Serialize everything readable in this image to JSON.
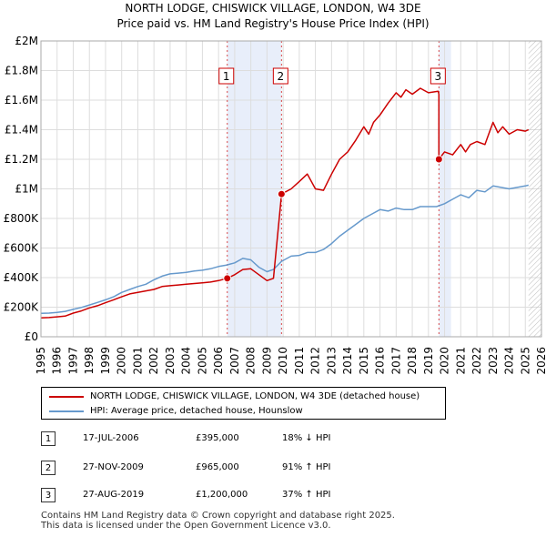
{
  "title_line1": "NORTH LODGE, CHISWICK VILLAGE, LONDON, W4 3DE",
  "title_line2": "Price paid vs. HM Land Registry's House Price Index (HPI)",
  "colors": {
    "property": "#cc0000",
    "hpi": "#6699cc",
    "shade": "#e8eefa",
    "grid": "#dddddd",
    "marker": "#cc0000"
  },
  "chart_data": {
    "type": "line",
    "title": "NORTH LODGE, CHISWICK VILLAGE, LONDON, W4 3DE — Price paid vs. HM Land Registry's House Price Index (HPI)",
    "xlabel": "",
    "ylabel": "",
    "xlim": [
      1995,
      2026
    ],
    "ylim": [
      0,
      2000000
    ],
    "x_ticks": [
      "1995",
      "1996",
      "1997",
      "1998",
      "1999",
      "2000",
      "2001",
      "2002",
      "2003",
      "2004",
      "2005",
      "2006",
      "2007",
      "2008",
      "2009",
      "2010",
      "2011",
      "2012",
      "2013",
      "2014",
      "2015",
      "2016",
      "2017",
      "2018",
      "2019",
      "2020",
      "2021",
      "2022",
      "2023",
      "2024",
      "2025",
      "2026"
    ],
    "y_ticks": [
      {
        "value": 0,
        "label": "£0"
      },
      {
        "value": 200000,
        "label": "£200K"
      },
      {
        "value": 400000,
        "label": "£400K"
      },
      {
        "value": 600000,
        "label": "£600K"
      },
      {
        "value": 800000,
        "label": "£800K"
      },
      {
        "value": 1000000,
        "label": "£1M"
      },
      {
        "value": 1200000,
        "label": "£1.2M"
      },
      {
        "value": 1400000,
        "label": "£1.4M"
      },
      {
        "value": 1600000,
        "label": "£1.6M"
      },
      {
        "value": 1800000,
        "label": "£1.8M"
      },
      {
        "value": 2000000,
        "label": "£2M"
      }
    ],
    "grid": true,
    "shaded_ranges": [
      [
        2006.54,
        2009.9
      ],
      [
        2019.65,
        2020.4
      ]
    ],
    "hatched_after": 2025.2,
    "series": [
      {
        "name": "NORTH LODGE, CHISWICK VILLAGE, LONDON, W4 3DE (detached house)",
        "color": "#cc0000",
        "x": [
          1995.0,
          1995.5,
          1996.0,
          1996.5,
          1997.0,
          1997.5,
          1998.0,
          1998.5,
          1999.0,
          1999.5,
          2000.0,
          2000.5,
          2001.0,
          2001.5,
          2002.0,
          2002.5,
          2003.0,
          2003.5,
          2004.0,
          2004.5,
          2005.0,
          2005.5,
          2006.0,
          2006.54,
          2006.54,
          2007.0,
          2007.5,
          2008.0,
          2008.5,
          2009.0,
          2009.4,
          2009.9,
          2009.9,
          2010.5,
          2011.0,
          2011.5,
          2012.0,
          2012.5,
          2013.0,
          2013.5,
          2014.0,
          2014.5,
          2015.0,
          2015.3,
          2015.6,
          2016.0,
          2016.5,
          2017.0,
          2017.3,
          2017.6,
          2018.0,
          2018.5,
          2019.0,
          2019.6,
          2019.65,
          2019.65,
          2020.0,
          2020.5,
          2021.0,
          2021.3,
          2021.6,
          2022.0,
          2022.5,
          2023.0,
          2023.3,
          2023.6,
          2024.0,
          2024.5,
          2025.0,
          2025.2
        ],
        "y": [
          128000,
          130000,
          135000,
          140000,
          160000,
          175000,
          195000,
          210000,
          230000,
          250000,
          270000,
          290000,
          300000,
          310000,
          320000,
          340000,
          345000,
          350000,
          355000,
          360000,
          365000,
          370000,
          380000,
          395000,
          395000,
          420000,
          455000,
          460000,
          420000,
          380000,
          395000,
          965000,
          965000,
          1000000,
          1050000,
          1100000,
          1000000,
          990000,
          1100000,
          1200000,
          1250000,
          1330000,
          1420000,
          1370000,
          1450000,
          1500000,
          1580000,
          1650000,
          1620000,
          1670000,
          1640000,
          1680000,
          1650000,
          1660000,
          1640000,
          1200000,
          1250000,
          1230000,
          1300000,
          1250000,
          1300000,
          1320000,
          1300000,
          1450000,
          1380000,
          1420000,
          1370000,
          1400000,
          1390000,
          1400000
        ]
      },
      {
        "name": "HPI: Average price, detached house, Hounslow",
        "color": "#6699cc",
        "x": [
          1995.0,
          1995.5,
          1996.0,
          1996.5,
          1997.0,
          1997.5,
          1998.0,
          1998.5,
          1999.0,
          1999.5,
          2000.0,
          2000.5,
          2001.0,
          2001.5,
          2002.0,
          2002.5,
          2003.0,
          2003.5,
          2004.0,
          2004.5,
          2005.0,
          2005.5,
          2006.0,
          2006.5,
          2007.0,
          2007.5,
          2008.0,
          2008.5,
          2009.0,
          2009.4,
          2009.9,
          2010.5,
          2011.0,
          2011.5,
          2012.0,
          2012.5,
          2013.0,
          2013.5,
          2014.0,
          2014.5,
          2015.0,
          2015.5,
          2016.0,
          2016.5,
          2017.0,
          2017.5,
          2018.0,
          2018.5,
          2019.0,
          2019.5,
          2020.0,
          2020.5,
          2021.0,
          2021.5,
          2022.0,
          2022.5,
          2023.0,
          2023.5,
          2024.0,
          2024.5,
          2025.0,
          2025.2
        ],
        "y": [
          158000,
          160000,
          165000,
          172000,
          185000,
          198000,
          215000,
          232000,
          250000,
          270000,
          300000,
          320000,
          340000,
          355000,
          385000,
          410000,
          425000,
          430000,
          435000,
          445000,
          450000,
          460000,
          475000,
          485000,
          500000,
          530000,
          520000,
          470000,
          440000,
          455000,
          510000,
          545000,
          550000,
          570000,
          570000,
          590000,
          630000,
          680000,
          720000,
          760000,
          800000,
          830000,
          860000,
          850000,
          870000,
          860000,
          860000,
          880000,
          880000,
          880000,
          900000,
          930000,
          960000,
          940000,
          990000,
          980000,
          1020000,
          1010000,
          1000000,
          1010000,
          1020000,
          1025000
        ]
      }
    ],
    "sales": [
      {
        "id": "1",
        "x": 2006.54,
        "y": 395000
      },
      {
        "id": "2",
        "x": 2009.9,
        "y": 965000
      },
      {
        "id": "3",
        "x": 2019.65,
        "y": 1200000
      }
    ]
  },
  "legend": {
    "property_label": "NORTH LODGE, CHISWICK VILLAGE, LONDON, W4 3DE (detached house)",
    "hpi_label": "HPI: Average price, detached house, Hounslow"
  },
  "sales_table": [
    {
      "id": "1",
      "date": "17-JUL-2006",
      "price": "£395,000",
      "hpi": "18% ↓ HPI"
    },
    {
      "id": "2",
      "date": "27-NOV-2009",
      "price": "£965,000",
      "hpi": "91% ↑ HPI"
    },
    {
      "id": "3",
      "date": "27-AUG-2019",
      "price": "£1,200,000",
      "hpi": "37% ↑ HPI"
    }
  ],
  "footer": {
    "line1": "Contains HM Land Registry data © Crown copyright and database right 2025.",
    "line2": "This data is licensed under the Open Government Licence v3.0."
  }
}
